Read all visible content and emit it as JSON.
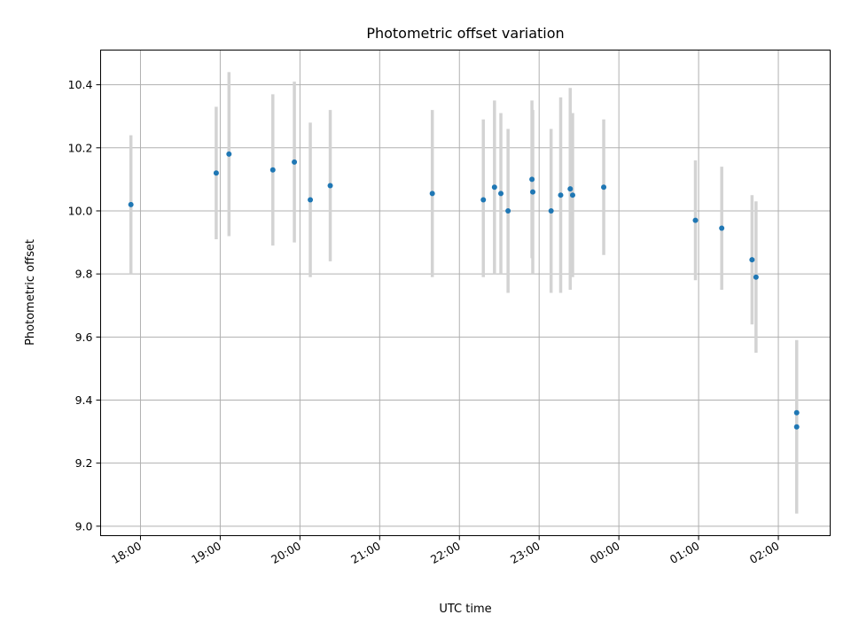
{
  "chart_data": {
    "type": "scatter",
    "title": "Photometric offset variation",
    "xlabel": "UTC time",
    "ylabel": "Photometric offset",
    "x_range_hours": [
      17.5,
      26.65
    ],
    "ylim": [
      8.97,
      10.51
    ],
    "x_ticks": [
      {
        "hour": 18,
        "label": "18:00"
      },
      {
        "hour": 19,
        "label": "19:00"
      },
      {
        "hour": 20,
        "label": "20:00"
      },
      {
        "hour": 21,
        "label": "21:00"
      },
      {
        "hour": 22,
        "label": "22:00"
      },
      {
        "hour": 23,
        "label": "23:00"
      },
      {
        "hour": 24,
        "label": "00:00"
      },
      {
        "hour": 25,
        "label": "01:00"
      },
      {
        "hour": 26,
        "label": "02:00"
      }
    ],
    "y_ticks": [
      "9.0",
      "9.2",
      "9.4",
      "9.6",
      "9.8",
      "10.0",
      "10.2",
      "10.4"
    ],
    "grid": true,
    "marker_color": "#1f77b4",
    "errorbar_color": "#d3d3d3",
    "points": [
      {
        "t": 17.88,
        "y": 10.02,
        "lo": 9.8,
        "hi": 10.24
      },
      {
        "t": 18.95,
        "y": 10.12,
        "lo": 9.91,
        "hi": 10.33
      },
      {
        "t": 19.11,
        "y": 10.18,
        "lo": 9.92,
        "hi": 10.44
      },
      {
        "t": 19.66,
        "y": 10.13,
        "lo": 9.89,
        "hi": 10.37
      },
      {
        "t": 19.93,
        "y": 10.155,
        "lo": 9.9,
        "hi": 10.41
      },
      {
        "t": 20.13,
        "y": 10.035,
        "lo": 9.79,
        "hi": 10.28
      },
      {
        "t": 20.38,
        "y": 10.08,
        "lo": 9.84,
        "hi": 10.32
      },
      {
        "t": 21.66,
        "y": 10.055,
        "lo": 9.79,
        "hi": 10.32
      },
      {
        "t": 22.3,
        "y": 10.035,
        "lo": 9.79,
        "hi": 10.29
      },
      {
        "t": 22.44,
        "y": 10.075,
        "lo": 9.8,
        "hi": 10.35
      },
      {
        "t": 22.52,
        "y": 10.055,
        "lo": 9.8,
        "hi": 10.31
      },
      {
        "t": 22.61,
        "y": 10.0,
        "lo": 9.74,
        "hi": 10.26
      },
      {
        "t": 22.91,
        "y": 10.1,
        "lo": 9.85,
        "hi": 10.35
      },
      {
        "t": 22.92,
        "y": 10.06,
        "lo": 9.8,
        "hi": 10.32
      },
      {
        "t": 23.15,
        "y": 10.0,
        "lo": 9.74,
        "hi": 10.26
      },
      {
        "t": 23.27,
        "y": 10.05,
        "lo": 9.74,
        "hi": 10.36
      },
      {
        "t": 23.39,
        "y": 10.07,
        "lo": 9.75,
        "hi": 10.39
      },
      {
        "t": 23.42,
        "y": 10.05,
        "lo": 9.79,
        "hi": 10.31
      },
      {
        "t": 23.81,
        "y": 10.075,
        "lo": 9.86,
        "hi": 10.29
      },
      {
        "t": 24.96,
        "y": 9.97,
        "lo": 9.78,
        "hi": 10.16
      },
      {
        "t": 25.29,
        "y": 9.945,
        "lo": 9.75,
        "hi": 10.14
      },
      {
        "t": 25.67,
        "y": 9.845,
        "lo": 9.64,
        "hi": 10.05
      },
      {
        "t": 25.72,
        "y": 9.79,
        "lo": 9.55,
        "hi": 10.03
      },
      {
        "t": 26.23,
        "y": 9.36,
        "lo": 9.13,
        "hi": 9.59
      },
      {
        "t": 26.23,
        "y": 9.315,
        "lo": 9.04,
        "hi": 9.59
      }
    ]
  }
}
